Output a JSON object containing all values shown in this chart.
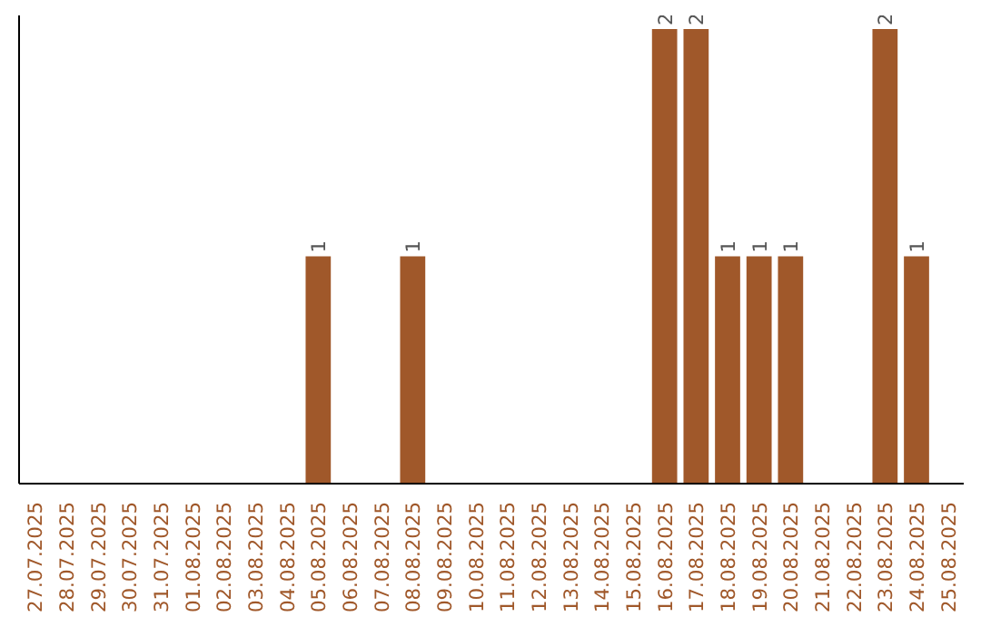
{
  "chart_data": {
    "type": "bar",
    "categories": [
      "27.07.2025",
      "28.07.2025",
      "29.07.2025",
      "30.07.2025",
      "31.07.2025",
      "01.08.2025",
      "02.08.2025",
      "03.08.2025",
      "04.08.2025",
      "05.08.2025",
      "06.08.2025",
      "07.08.2025",
      "08.08.2025",
      "09.08.2025",
      "10.08.2025",
      "11.08.2025",
      "12.08.2025",
      "13.08.2025",
      "14.08.2025",
      "15.08.2025",
      "16.08.2025",
      "17.08.2025",
      "18.08.2025",
      "19.08.2025",
      "20.08.2025",
      "21.08.2025",
      "22.08.2025",
      "23.08.2025",
      "24.08.2025",
      "25.08.2025"
    ],
    "values": [
      0,
      0,
      0,
      0,
      0,
      0,
      0,
      0,
      0,
      1,
      0,
      0,
      1,
      0,
      0,
      0,
      0,
      0,
      0,
      0,
      2,
      2,
      1,
      1,
      1,
      0,
      0,
      2,
      1,
      0
    ],
    "value_labels": [
      null,
      null,
      null,
      null,
      null,
      null,
      null,
      null,
      null,
      "1",
      null,
      null,
      "1",
      null,
      null,
      null,
      null,
      null,
      null,
      null,
      "2",
      "2",
      "1",
      "1",
      "1",
      null,
      null,
      "2",
      "1",
      null
    ],
    "color": "#a0582a",
    "grid": false,
    "tick_labels": "x"
  }
}
